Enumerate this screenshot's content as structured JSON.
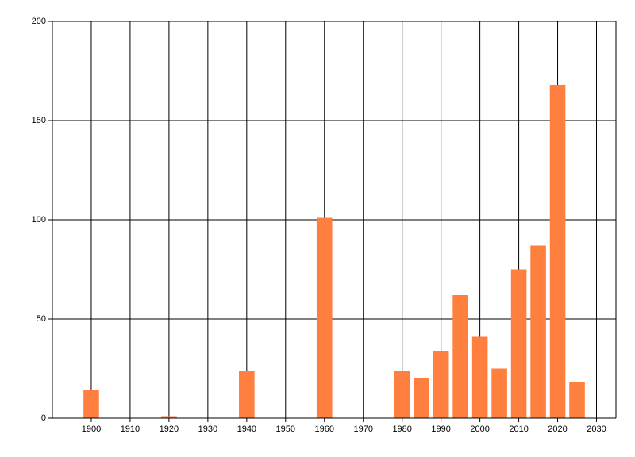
{
  "chart_data": {
    "type": "bar",
    "x": [
      1900,
      1920,
      1940,
      1960,
      1980,
      1985,
      1990,
      1995,
      2000,
      2005,
      2010,
      2015,
      2020,
      2025
    ],
    "values": [
      14,
      1,
      24,
      101,
      24,
      20,
      34,
      62,
      41,
      25,
      75,
      87,
      168,
      18
    ],
    "color": "#ff7f3f",
    "xlim": [
      1890,
      2035
    ],
    "xticks": [
      1900,
      1910,
      1920,
      1930,
      1940,
      1950,
      1960,
      1970,
      1980,
      1990,
      2000,
      2010,
      2020,
      2030
    ],
    "ylim": [
      0,
      200
    ],
    "yticks": [
      0,
      50,
      100,
      150,
      200
    ],
    "grid": true
  }
}
